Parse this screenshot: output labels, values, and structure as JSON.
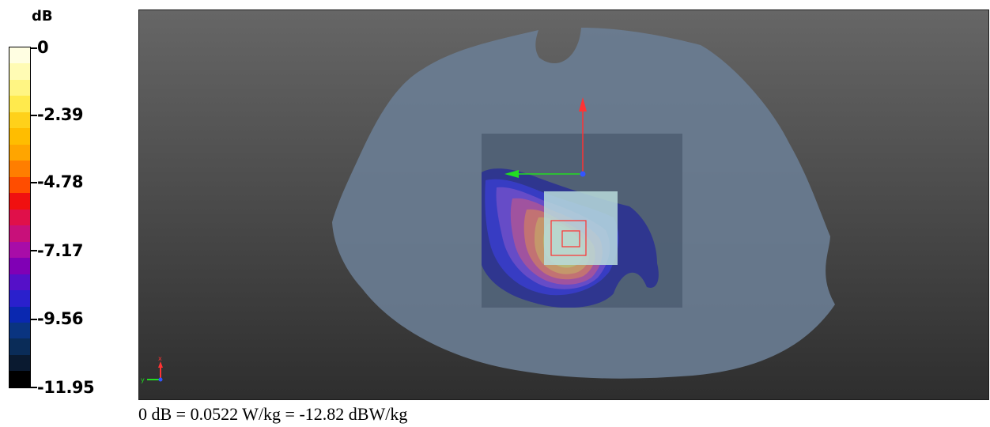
{
  "legend": {
    "unit": "dB",
    "ticks": [
      "0",
      "-2.39",
      "-4.78",
      "-7.17",
      "-9.56",
      "-11.95"
    ],
    "colors": [
      "#fffee2",
      "#fffbb4",
      "#fff583",
      "#ffea4d",
      "#ffd11a",
      "#ffbd00",
      "#ffa500",
      "#ff7e00",
      "#ff4d00",
      "#f01010",
      "#e0104a",
      "#c8107a",
      "#a80ca8",
      "#8000b5",
      "#5510c8",
      "#2a20cc",
      "#0a28b0",
      "#0a3480",
      "#0a2c58",
      "#0a1a30",
      "#000000"
    ]
  },
  "viewport": {
    "background_top": "#666666",
    "background_bottom": "#2e2e2e",
    "phantom_color": "#6a7d93",
    "scan_area_color": "#4a5a6e",
    "zoom_scan_color": "#b9dcdc",
    "marker_color": "#ff3030",
    "axis_colors": {
      "x": "#ff3333",
      "y": "#22dd22",
      "z": "#3355ff"
    },
    "axis_labels": {
      "x": "x",
      "y": "y"
    }
  },
  "caption": "0 dB = 0.0522 W/kg = -12.82 dBW/kg"
}
